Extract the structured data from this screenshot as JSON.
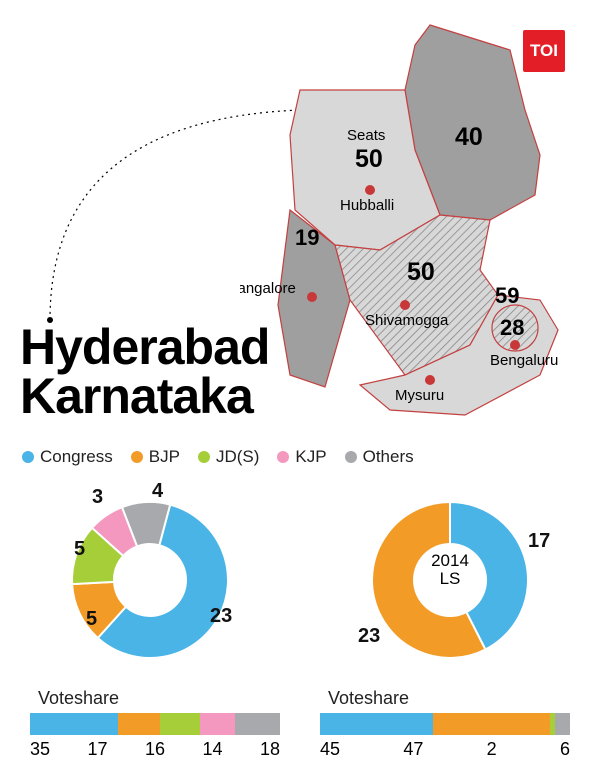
{
  "brand": "TOI",
  "title": {
    "line1": "Hyderabad",
    "line2": "Karnataka"
  },
  "colors": {
    "congress": "#4ab4e6",
    "bjp": "#f29c27",
    "jds": "#a5ce39",
    "kjp": "#f598c0",
    "others": "#a7a9ac",
    "map_dark": "#9f9f9f",
    "map_light": "#d8d8d8",
    "map_border": "#c44040",
    "city_dot": "#c83838",
    "toi": "#e41e26"
  },
  "legend": [
    {
      "label": "Congress",
      "colorKey": "congress"
    },
    {
      "label": "BJP",
      "colorKey": "bjp"
    },
    {
      "label": "JD(S)",
      "colorKey": "jds"
    },
    {
      "label": "KJP",
      "colorKey": "kjp"
    },
    {
      "label": "Others",
      "colorKey": "others"
    }
  ],
  "map": {
    "seats_label": "Seats",
    "regions": [
      {
        "name": "north-east",
        "seats": "40",
        "shade": "dark"
      },
      {
        "name": "north-west",
        "seats": "50",
        "shade": "light"
      },
      {
        "name": "coast",
        "seats": "19",
        "shade": "dark"
      },
      {
        "name": "central",
        "seats": "50",
        "shade": "hatched"
      },
      {
        "name": "south-east",
        "seats": "59",
        "shade": "light"
      },
      {
        "name": "bengaluru",
        "seats": "28",
        "shade": "hatched"
      }
    ],
    "cities": [
      {
        "name": "Hubballi"
      },
      {
        "name": "Mangalore"
      },
      {
        "name": "Shivamogga"
      },
      {
        "name": "Bengaluru"
      },
      {
        "name": "Mysuru"
      }
    ]
  },
  "donuts": {
    "left": {
      "center": "",
      "slices": [
        {
          "label": "23",
          "value": 23,
          "colorKey": "congress"
        },
        {
          "label": "5",
          "value": 5,
          "colorKey": "bjp"
        },
        {
          "label": "5",
          "value": 5,
          "colorKey": "jds"
        },
        {
          "label": "3",
          "value": 3,
          "colorKey": "kjp"
        },
        {
          "label": "4",
          "value": 4,
          "colorKey": "others"
        }
      ]
    },
    "right": {
      "center_line1": "2014",
      "center_line2": "LS",
      "slices": [
        {
          "label": "17",
          "value": 17,
          "colorKey": "congress"
        },
        {
          "label": "23",
          "value": 23,
          "colorKey": "bjp"
        }
      ]
    }
  },
  "voteshare": {
    "title": "Voteshare",
    "left": {
      "segments": [
        {
          "value": 35,
          "colorKey": "congress"
        },
        {
          "value": 17,
          "colorKey": "bjp"
        },
        {
          "value": 16,
          "colorKey": "jds"
        },
        {
          "value": 14,
          "colorKey": "kjp"
        },
        {
          "value": 18,
          "colorKey": "others"
        }
      ]
    },
    "right": {
      "segments": [
        {
          "value": 45,
          "colorKey": "congress"
        },
        {
          "value": 47,
          "colorKey": "bjp"
        },
        {
          "value": 2,
          "colorKey": "jds"
        },
        {
          "value": 6,
          "colorKey": "others"
        }
      ]
    }
  }
}
